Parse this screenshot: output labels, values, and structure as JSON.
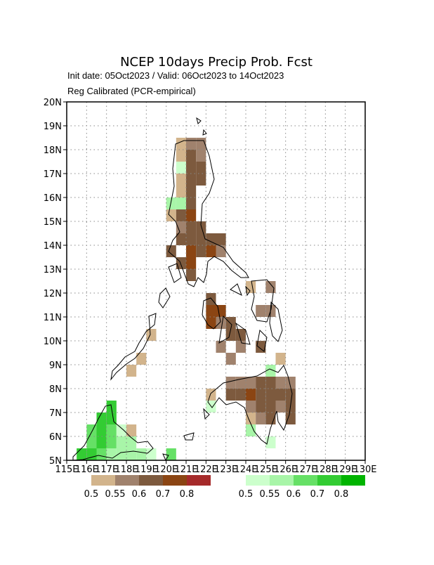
{
  "chart_data": {
    "type": "grid-map",
    "title": "NCEP 10days Precip Prob. Fcst",
    "subtitle": "Init date: 05Oct2023 / Valid: 06Oct2023 to 14Oct2023",
    "note": "Reg Calibrated (PCR-empirical)",
    "xlim": [
      115,
      130
    ],
    "ylim": [
      5,
      20
    ],
    "xticks": [
      {
        "value": 115,
        "label": "115E"
      },
      {
        "value": 116,
        "label": "116E"
      },
      {
        "value": 117,
        "label": "117E"
      },
      {
        "value": 118,
        "label": "118E"
      },
      {
        "value": 119,
        "label": "119E"
      },
      {
        "value": 120,
        "label": "120E"
      },
      {
        "value": 121,
        "label": "121E"
      },
      {
        "value": 122,
        "label": "122E"
      },
      {
        "value": 123,
        "label": "123E"
      },
      {
        "value": 124,
        "label": "124E"
      },
      {
        "value": 125,
        "label": "125E"
      },
      {
        "value": 126,
        "label": "126E"
      },
      {
        "value": 127,
        "label": "127E"
      },
      {
        "value": 128,
        "label": "128E"
      },
      {
        "value": 129,
        "label": "129E"
      },
      {
        "value": 130,
        "label": "130E"
      }
    ],
    "yticks": [
      {
        "value": 5,
        "label": "5N"
      },
      {
        "value": 6,
        "label": "6N"
      },
      {
        "value": 7,
        "label": "7N"
      },
      {
        "value": 8,
        "label": "8N"
      },
      {
        "value": 9,
        "label": "9N"
      },
      {
        "value": 10,
        "label": "10N"
      },
      {
        "value": 11,
        "label": "11N"
      },
      {
        "value": 12,
        "label": "12N"
      },
      {
        "value": 13,
        "label": "13N"
      },
      {
        "value": 14,
        "label": "14N"
      },
      {
        "value": 15,
        "label": "15N"
      },
      {
        "value": 16,
        "label": "16N"
      },
      {
        "value": 17,
        "label": "17N"
      },
      {
        "value": 18,
        "label": "18N"
      },
      {
        "value": 19,
        "label": "19N"
      },
      {
        "value": 20,
        "label": "20N"
      }
    ],
    "grid": true,
    "cell_size": 0.5,
    "dry_levels": [
      0.5,
      0.55,
      0.6,
      0.7,
      0.8
    ],
    "dry_colors": [
      "#d2b48c",
      "#a0826d",
      "#7d5a3e",
      "#8b4513",
      "#a52a2a"
    ],
    "wet_levels": [
      0.5,
      0.55,
      0.6,
      0.7,
      0.8
    ],
    "wet_colors": [
      "#ccffcc",
      "#a8f5a8",
      "#66e066",
      "#33cc33",
      "#00b400"
    ],
    "dry_cells": [
      [
        120.5,
        18,
        0.5
      ],
      [
        121,
        18,
        0.55
      ],
      [
        121.5,
        18,
        0.55
      ],
      [
        120.5,
        17.5,
        0.5
      ],
      [
        121,
        17.5,
        0.6
      ],
      [
        121.5,
        17.5,
        0.55
      ],
      [
        121,
        17,
        0.6
      ],
      [
        121.5,
        17,
        0.6
      ],
      [
        120.5,
        16.5,
        0.5
      ],
      [
        121,
        16.5,
        0.6
      ],
      [
        121.5,
        16.5,
        0.6
      ],
      [
        120.5,
        16,
        0.5
      ],
      [
        121,
        16,
        0.6
      ],
      [
        121,
        15.5,
        0.6
      ],
      [
        120,
        15,
        0.5
      ],
      [
        120.5,
        15,
        0.6
      ],
      [
        121,
        15,
        0.7
      ],
      [
        120.5,
        14.5,
        0.55
      ],
      [
        121,
        14.5,
        0.6
      ],
      [
        121.5,
        14.5,
        0.6
      ],
      [
        120.5,
        14,
        0.6
      ],
      [
        121,
        14,
        0.6
      ],
      [
        121.5,
        14,
        0.6
      ],
      [
        122,
        14,
        0.6
      ],
      [
        122.5,
        14,
        0.6
      ],
      [
        120,
        13.5,
        0.6
      ],
      [
        121,
        13.5,
        0.7
      ],
      [
        121.5,
        13.5,
        0.6
      ],
      [
        122,
        13.5,
        0.7
      ],
      [
        122.5,
        13.5,
        0.55
      ],
      [
        120.5,
        13,
        0.6
      ],
      [
        121,
        13,
        0.7
      ],
      [
        121,
        12.5,
        0.6
      ],
      [
        124,
        12,
        0.5
      ],
      [
        125,
        12,
        0.55
      ],
      [
        122,
        11.5,
        0.6
      ],
      [
        122,
        11,
        0.7
      ],
      [
        122.5,
        11,
        0.7
      ],
      [
        124.5,
        11,
        0.55
      ],
      [
        125,
        11,
        0.55
      ],
      [
        122,
        10.5,
        0.7
      ],
      [
        122.5,
        10.5,
        0.55
      ],
      [
        123,
        10.5,
        0.6
      ],
      [
        123,
        10,
        0.6
      ],
      [
        123.5,
        10,
        0.6
      ],
      [
        122.5,
        9.5,
        0.55
      ],
      [
        123.5,
        9.5,
        0.55
      ],
      [
        124.5,
        9.5,
        0.6
      ],
      [
        123,
        9,
        0.55
      ],
      [
        125.5,
        9,
        0.5
      ],
      [
        119,
        10,
        0.5
      ],
      [
        118.5,
        9,
        0.5
      ],
      [
        118,
        8.5,
        0.5
      ],
      [
        123,
        8,
        0.55
      ],
      [
        123.5,
        8,
        0.55
      ],
      [
        124,
        8,
        0.55
      ],
      [
        124.5,
        8,
        0.6
      ],
      [
        125,
        8,
        0.6
      ],
      [
        125.5,
        8,
        0.55
      ],
      [
        126,
        8,
        0.55
      ],
      [
        123,
        7.5,
        0.6
      ],
      [
        123.5,
        7.5,
        0.6
      ],
      [
        124,
        7.5,
        0.7
      ],
      [
        124.5,
        7.5,
        0.6
      ],
      [
        125,
        7.5,
        0.6
      ],
      [
        125.5,
        7.5,
        0.6
      ],
      [
        126,
        7.5,
        0.6
      ],
      [
        122,
        7.5,
        0.5
      ],
      [
        124,
        7,
        0.55
      ],
      [
        124.5,
        7,
        0.6
      ],
      [
        125,
        7,
        0.6
      ],
      [
        125.5,
        7,
        0.55
      ],
      [
        126,
        7,
        0.6
      ],
      [
        124,
        6.5,
        0.5
      ],
      [
        124.5,
        6.5,
        0.55
      ],
      [
        125,
        6.5,
        0.6
      ],
      [
        126,
        6.5,
        0.6
      ],
      [
        118,
        6,
        0.5
      ]
    ],
    "wet_cells": [
      [
        120.5,
        17,
        0.5
      ],
      [
        120,
        15.5,
        0.55
      ],
      [
        120.5,
        15.5,
        0.55
      ],
      [
        122,
        7,
        0.5
      ],
      [
        125,
        8.5,
        0.55
      ],
      [
        124,
        6,
        0.55
      ],
      [
        125,
        5.5,
        0.5
      ],
      [
        117,
        7,
        0.7
      ],
      [
        116.5,
        6.5,
        0.7
      ],
      [
        117,
        6.5,
        0.7
      ],
      [
        116,
        6,
        0.6
      ],
      [
        116.5,
        6,
        0.7
      ],
      [
        117,
        6,
        0.6
      ],
      [
        117.5,
        6,
        0.5
      ],
      [
        116,
        5.5,
        0.6
      ],
      [
        116.5,
        5.5,
        0.7
      ],
      [
        117,
        5.5,
        0.6
      ],
      [
        117.5,
        5.5,
        0.55
      ],
      [
        118,
        5.5,
        0.55
      ],
      [
        115.5,
        5,
        0.7
      ],
      [
        116,
        5,
        0.7
      ],
      [
        116.5,
        5,
        0.6
      ],
      [
        117,
        5,
        0.55
      ],
      [
        117.5,
        5,
        0.55
      ],
      [
        118,
        5,
        0.55
      ],
      [
        118.5,
        5,
        0.55
      ],
      [
        119,
        5,
        0.5
      ],
      [
        120,
        5,
        0.6
      ]
    ]
  }
}
